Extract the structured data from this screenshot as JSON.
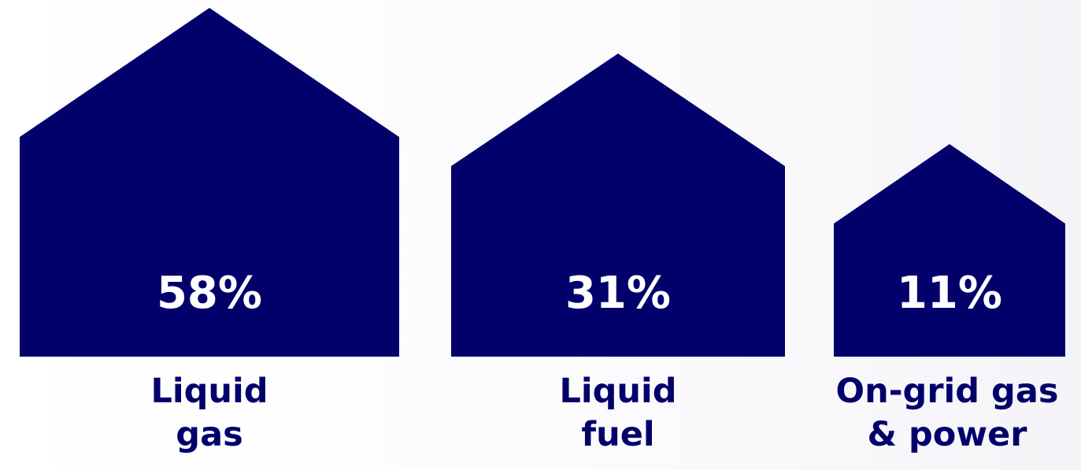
{
  "chart_data": {
    "type": "bar",
    "categories": [
      [
        "Liquid",
        "gas"
      ],
      [
        "Liquid",
        "fuel"
      ],
      [
        "On-grid gas",
        "& power"
      ]
    ],
    "values": [
      58,
      31,
      11
    ],
    "value_labels": [
      "58%",
      "31%",
      "11%"
    ],
    "unit": "%",
    "title": "",
    "xlabel": "",
    "ylabel": "",
    "grid": false,
    "legend": "none",
    "colors": {
      "house_fill": "#02006b",
      "value_text": "#ffffff",
      "label_text": "#02006b"
    },
    "shape": "house-icon"
  }
}
